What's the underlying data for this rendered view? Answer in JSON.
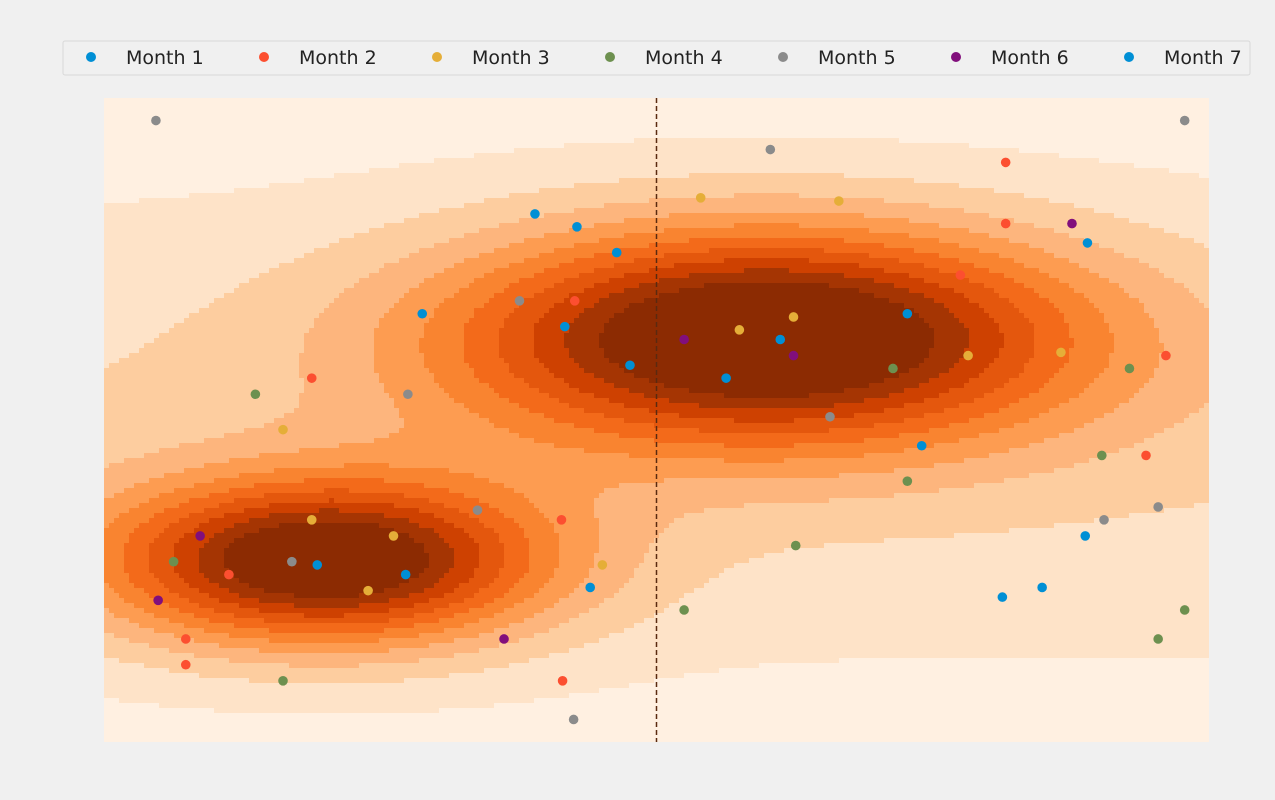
{
  "chart_data": {
    "type": "scatter",
    "title": "",
    "xlabel": "",
    "ylabel": "",
    "xlim": [
      0,
      100
    ],
    "ylim": [
      0,
      100
    ],
    "grid": false,
    "legend_position": "top",
    "vertical_line": {
      "x": 50,
      "style": "dashed",
      "color": "#5a2a10"
    },
    "density_background": {
      "colormap": "oranges",
      "levels": [
        "#fff0e1",
        "#fee3c8",
        "#fdcd9f",
        "#fdb57d",
        "#fd9c51",
        "#f98430",
        "#f36a1a",
        "#e4570d",
        "#ce4101",
        "#a53503",
        "#8c2b02"
      ]
    },
    "series": [
      {
        "name": "Month 1",
        "color": "#008fd5",
        "points": [
          [
            39,
            82
          ],
          [
            42.8,
            80
          ],
          [
            46.4,
            76
          ],
          [
            28.8,
            66.5
          ],
          [
            41.7,
            64.5
          ],
          [
            47.6,
            58.5
          ],
          [
            56.3,
            56.5
          ],
          [
            61.2,
            62.5
          ],
          [
            72.7,
            66.5
          ],
          [
            74,
            46
          ],
          [
            19.3,
            27.5
          ],
          [
            27.3,
            26
          ],
          [
            44,
            24
          ],
          [
            89,
            77.5
          ],
          [
            88.8,
            32
          ],
          [
            84.9,
            24
          ],
          [
            81.3,
            22.5
          ]
        ]
      },
      {
        "name": "Month 2",
        "color": "#fc4f30",
        "points": [
          [
            81.6,
            90
          ],
          [
            81.6,
            80.5
          ],
          [
            77.5,
            72.5
          ],
          [
            42.6,
            68.5
          ],
          [
            18.8,
            56.5
          ],
          [
            41.4,
            34.5
          ],
          [
            11.3,
            26
          ],
          [
            7.4,
            16
          ],
          [
            7.4,
            12
          ],
          [
            41.5,
            9.5
          ],
          [
            96.1,
            60
          ],
          [
            94.3,
            44.5
          ]
        ]
      },
      {
        "name": "Month 3",
        "color": "#e5ae38",
        "points": [
          [
            54,
            84.5
          ],
          [
            66.5,
            84
          ],
          [
            57.5,
            64
          ],
          [
            62.4,
            66
          ],
          [
            78.2,
            60
          ],
          [
            16.2,
            48.5
          ],
          [
            18.8,
            34.5
          ],
          [
            26.2,
            32
          ],
          [
            23.9,
            23.5
          ],
          [
            45.1,
            27.5
          ],
          [
            86.6,
            60.5
          ]
        ]
      },
      {
        "name": "Month 4",
        "color": "#6d904f",
        "points": [
          [
            13.7,
            54
          ],
          [
            71.4,
            58
          ],
          [
            72.7,
            40.5
          ],
          [
            92.8,
            58
          ],
          [
            90.3,
            44.5
          ],
          [
            62.6,
            30.5
          ],
          [
            6.3,
            28
          ],
          [
            52.5,
            20.5
          ],
          [
            16.2,
            9.5
          ],
          [
            95.4,
            16
          ],
          [
            97.8,
            20.5
          ]
        ]
      },
      {
        "name": "Month 5",
        "color": "#8b8b8b",
        "points": [
          [
            4.7,
            96.5
          ],
          [
            60.3,
            92
          ],
          [
            37.6,
            68.5
          ],
          [
            27.5,
            54
          ],
          [
            65.7,
            50.5
          ],
          [
            33.8,
            36
          ],
          [
            17,
            28
          ],
          [
            42.5,
            3.5
          ],
          [
            97.8,
            96.5
          ],
          [
            95.4,
            36.5
          ],
          [
            90.5,
            34.5
          ]
        ]
      },
      {
        "name": "Month 6",
        "color": "#810f7c",
        "points": [
          [
            52.5,
            62.5
          ],
          [
            62.4,
            60
          ],
          [
            87.6,
            80.5
          ],
          [
            8.7,
            32
          ],
          [
            4.9,
            22
          ],
          [
            36.2,
            16
          ]
        ]
      },
      {
        "name": "Month 7",
        "color": "#008fd5",
        "points": []
      }
    ]
  }
}
